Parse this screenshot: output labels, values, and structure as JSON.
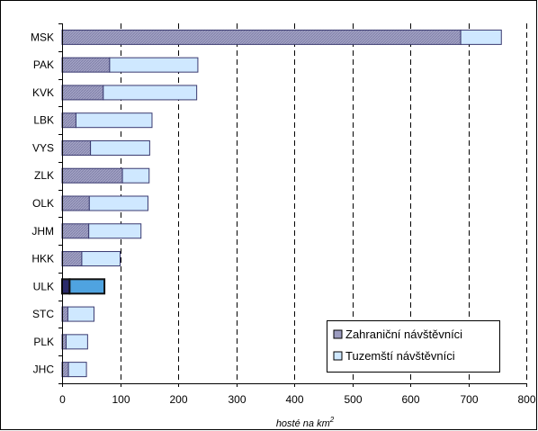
{
  "chart_data": {
    "type": "bar",
    "orientation": "horizontal",
    "stacked": true,
    "categories": [
      "MSK",
      "PAK",
      "KVK",
      "LBK",
      "VYS",
      "ZLK",
      "OLK",
      "JHM",
      "HKK",
      "ULK",
      "STC",
      "PLK",
      "JHC"
    ],
    "highlighted_category": "ULK",
    "series": [
      {
        "name": "Zahraniční návštěvníci",
        "values": [
          687,
          82,
          71,
          24,
          49,
          104,
          47,
          46,
          34,
          13,
          10,
          7,
          11
        ],
        "color": "#9c9cc0"
      },
      {
        "name": "Tuzemští návštěvníci",
        "values": [
          70,
          152,
          161,
          131,
          102,
          46,
          101,
          90,
          66,
          60,
          45,
          37,
          31
        ],
        "color": "#cfe8ff"
      }
    ],
    "highlight_colors": {
      "Zahraniční návštěvníci": "#2a2a6a",
      "Tuzemští návštěvníci": "#4fa3e0"
    },
    "xlabel": "hosté na km",
    "xlabel_superscript": "2",
    "xlim": [
      0,
      800
    ],
    "xticks": [
      "0",
      "100",
      "200",
      "300",
      "400",
      "500",
      "600",
      "700",
      "800"
    ],
    "grid": "vertical-dashed",
    "legend_position": "bottom-right"
  }
}
